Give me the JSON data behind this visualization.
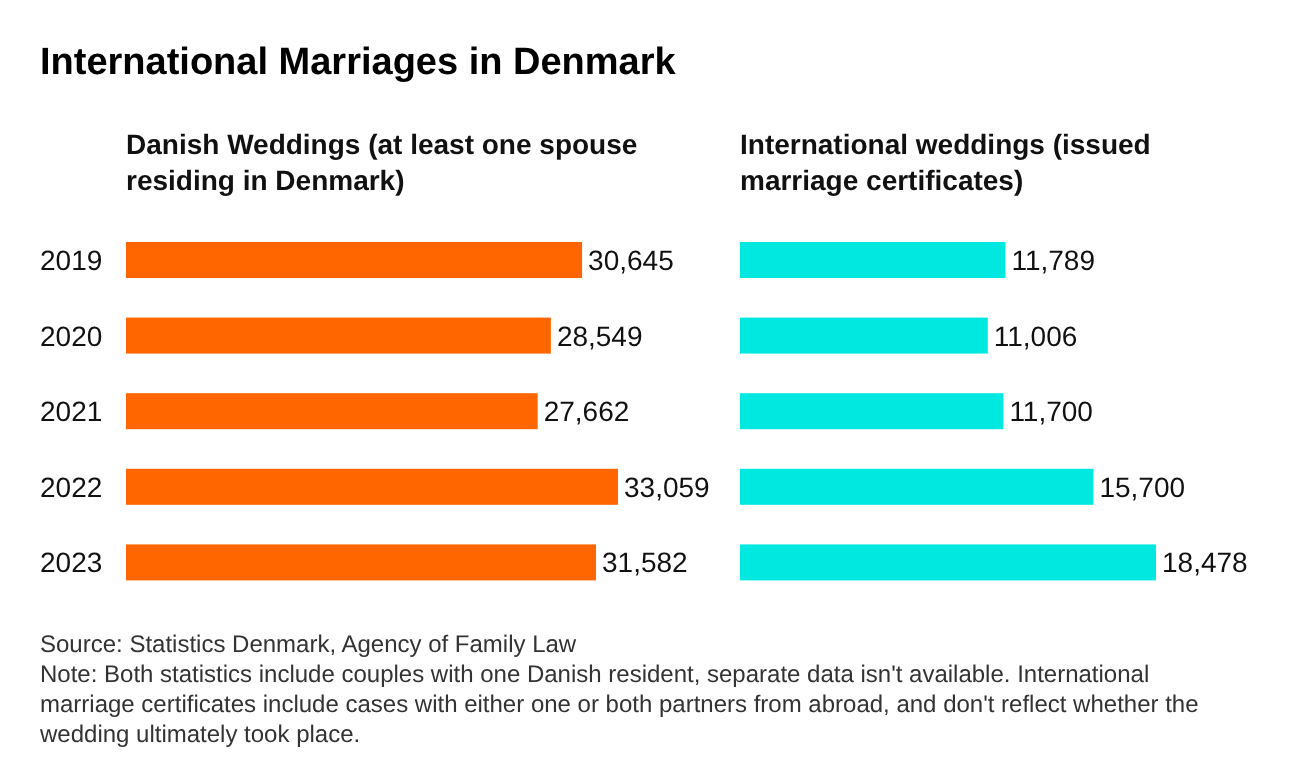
{
  "chart_data": [
    {
      "type": "bar",
      "orientation": "horizontal",
      "title": "International Marriages in Denmark",
      "subtitle": "Danish Weddings (at least one spouse residing in Denmark)",
      "categories": [
        "2019",
        "2020",
        "2021",
        "2022",
        "2023"
      ],
      "values": [
        30645,
        28549,
        27662,
        33059,
        31582
      ],
      "color": "#ff6600",
      "value_labels": [
        "30,645",
        "28,549",
        "27,662",
        "33,059",
        "31,582"
      ],
      "tick_labels": "y",
      "annotations": [
        "Source: Statistics Denmark, Agency of Family Law",
        "Note: Both statistics include couples with one Danish resident, separate data isn't available. International marriage certificates include cases with either one or both partners from abroad, and don't reflect whether the wedding ultimately took place."
      ]
    },
    {
      "type": "bar",
      "orientation": "horizontal",
      "subtitle": "International weddings (issued marriage certificates)",
      "categories": [
        null,
        null,
        null,
        null,
        null
      ],
      "values": [
        11789,
        11006,
        11700,
        15700,
        18478
      ],
      "color": "#00e8e0",
      "value_labels": [
        "11,789",
        "11,006",
        "11,700",
        "15,700",
        "18,478"
      ],
      "tick_labels": false
    }
  ]
}
